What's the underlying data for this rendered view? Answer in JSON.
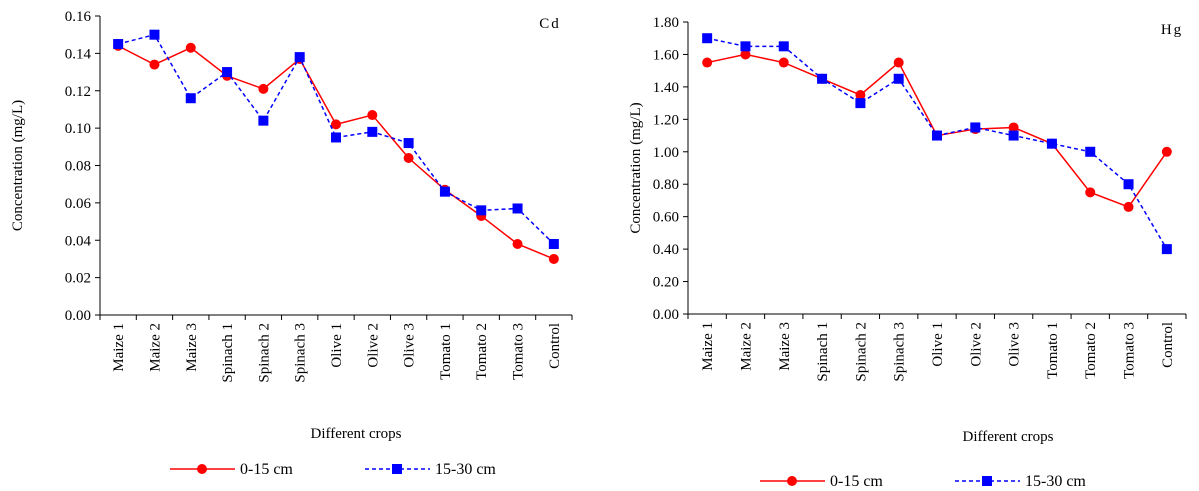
{
  "chart_data": [
    {
      "type": "line",
      "title": "Cd",
      "xlabel": "Different crops",
      "ylabel": "Concentration (mg/L)",
      "ylim": [
        0,
        0.16
      ],
      "yticks": [
        "0.00",
        "0.02",
        "0.04",
        "0.06",
        "0.08",
        "0.10",
        "0.12",
        "0.14",
        "0.16"
      ],
      "categories": [
        "Maize 1",
        "Maize 2",
        "Maize 3",
        "Spinach 1",
        "Spinach 2",
        "Spinach 3",
        "Olive 1",
        "Olive 2",
        "Olive 3",
        "Tomato 1",
        "Tomato 2",
        "Tomato 3",
        "Control"
      ],
      "series": [
        {
          "name": "0-15 cm",
          "color": "#ff0000",
          "marker": "circle",
          "line": "solid",
          "values": [
            0.144,
            0.134,
            0.143,
            0.128,
            0.121,
            0.137,
            0.102,
            0.107,
            0.084,
            0.067,
            0.053,
            0.038,
            0.03
          ]
        },
        {
          "name": "15-30 cm",
          "color": "#0000ff",
          "marker": "square",
          "line": "dashed",
          "values": [
            0.145,
            0.15,
            0.116,
            0.13,
            0.104,
            0.138,
            0.095,
            0.098,
            0.092,
            0.066,
            0.056,
            0.057,
            0.038
          ]
        }
      ]
    },
    {
      "type": "line",
      "title": "Hg",
      "xlabel": "Different crops",
      "ylabel": "Concentration (mg/L)",
      "ylim": [
        0,
        1.8
      ],
      "yticks": [
        "0.00",
        "0.20",
        "0.40",
        "0.60",
        "0.80",
        "1.00",
        "1.20",
        "1.40",
        "1.60",
        "1.80"
      ],
      "categories": [
        "Maize 1",
        "Maize 2",
        "Maize 3",
        "Spinach 1",
        "Spinach 2",
        "Spinach 3",
        "Olive 1",
        "Olive 2",
        "Olive 3",
        "Tomato 1",
        "Tomato 2",
        "Tomato 3",
        "Control"
      ],
      "series": [
        {
          "name": "0-15 cm",
          "color": "#ff0000",
          "marker": "circle",
          "line": "solid",
          "values": [
            1.55,
            1.6,
            1.55,
            1.45,
            1.35,
            1.55,
            1.1,
            1.14,
            1.15,
            1.05,
            0.75,
            0.66,
            1.0
          ]
        },
        {
          "name": "15-30 cm",
          "color": "#0000ff",
          "marker": "square",
          "line": "dashed",
          "values": [
            1.7,
            1.65,
            1.65,
            1.45,
            1.3,
            1.45,
            1.1,
            1.15,
            1.1,
            1.05,
            1.0,
            0.8,
            0.4
          ]
        }
      ]
    }
  ]
}
